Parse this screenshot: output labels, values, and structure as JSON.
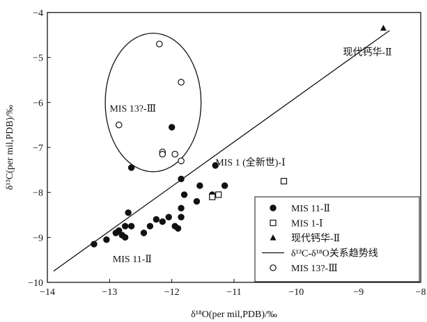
{
  "chart_data": {
    "type": "scatter",
    "xlabel": "δ¹⁸O(per mil,PDB)/‰",
    "ylabel": "δ¹³C(per mil,PDB)/‰",
    "xlim": [
      -14,
      -8
    ],
    "ylim": [
      -10,
      -4
    ],
    "xticks": [
      "−14",
      "−13",
      "−12",
      "−11",
      "−10",
      "−9",
      "−8"
    ],
    "yticks": [
      "−4",
      "−5",
      "−6",
      "−7",
      "−8",
      "−9",
      "−10"
    ],
    "xtick_values": [
      -14,
      -13,
      -12,
      -11,
      -10,
      -9,
      -8
    ],
    "ytick_values": [
      -4,
      -5,
      -6,
      -7,
      -8,
      -9,
      -10
    ],
    "grid": false,
    "legend_position": "bottom-right",
    "series": [
      {
        "name": "MIS 11-Ⅱ",
        "marker": "filled-circle",
        "points": [
          [
            -13.25,
            -9.15
          ],
          [
            -13.05,
            -9.05
          ],
          [
            -12.9,
            -8.9
          ],
          [
            -12.85,
            -8.85
          ],
          [
            -12.8,
            -8.95
          ],
          [
            -12.75,
            -9.0
          ],
          [
            -12.75,
            -8.75
          ],
          [
            -12.7,
            -8.45
          ],
          [
            -12.65,
            -8.75
          ],
          [
            -12.45,
            -8.9
          ],
          [
            -12.35,
            -8.75
          ],
          [
            -12.25,
            -8.6
          ],
          [
            -12.15,
            -8.65
          ],
          [
            -12.05,
            -8.55
          ],
          [
            -11.95,
            -8.75
          ],
          [
            -11.9,
            -8.8
          ],
          [
            -11.85,
            -8.55
          ],
          [
            -11.85,
            -8.35
          ],
          [
            -11.8,
            -8.05
          ],
          [
            -11.6,
            -8.2
          ],
          [
            -11.55,
            -7.85
          ],
          [
            -11.35,
            -8.05
          ],
          [
            -11.15,
            -7.85
          ],
          [
            -12.65,
            -7.45
          ],
          [
            -11.85,
            -7.7
          ],
          [
            -11.3,
            -7.4
          ],
          [
            -12.0,
            -6.55
          ]
        ]
      },
      {
        "name": "MIS 1-Ⅰ",
        "marker": "open-square",
        "points": [
          [
            -11.35,
            -8.1
          ],
          [
            -11.25,
            -8.05
          ],
          [
            -10.2,
            -7.75
          ]
        ]
      },
      {
        "name": "现代钙华-Ⅱ",
        "marker": "filled-triangle",
        "points": [
          [
            -8.6,
            -4.35
          ]
        ]
      },
      {
        "name": "MIS 13?-Ⅲ",
        "marker": "open-circle",
        "points": [
          [
            -12.2,
            -4.7
          ],
          [
            -11.85,
            -5.55
          ],
          [
            -12.85,
            -6.5
          ],
          [
            -12.15,
            -7.1
          ],
          [
            -12.15,
            -7.15
          ],
          [
            -11.95,
            -7.15
          ],
          [
            -11.85,
            -7.3
          ]
        ]
      }
    ],
    "trend_line": {
      "name": "δ¹³C-δ¹⁸O关系趋势线",
      "from": [
        -13.9,
        -9.75
      ],
      "to": [
        -8.5,
        -4.4
      ]
    },
    "ellipse_group": {
      "label": "MIS 13?-Ⅲ",
      "center": [
        -12.3,
        -6.0
      ],
      "radius_x": 0.77,
      "radius_y": 1.54
    },
    "annotations": [
      {
        "text": "现代钙华-Ⅱ",
        "at": [
          -9.25,
          -4.95
        ]
      },
      {
        "text": "MIS 1 (全新世)-Ⅰ",
        "at": [
          -11.3,
          -7.4
        ]
      },
      {
        "text": "MIS 11-Ⅱ",
        "at": [
          -12.95,
          -9.55
        ]
      },
      {
        "text": "MIS 13?-Ⅲ",
        "at": [
          -13.0,
          -6.2
        ]
      }
    ]
  }
}
